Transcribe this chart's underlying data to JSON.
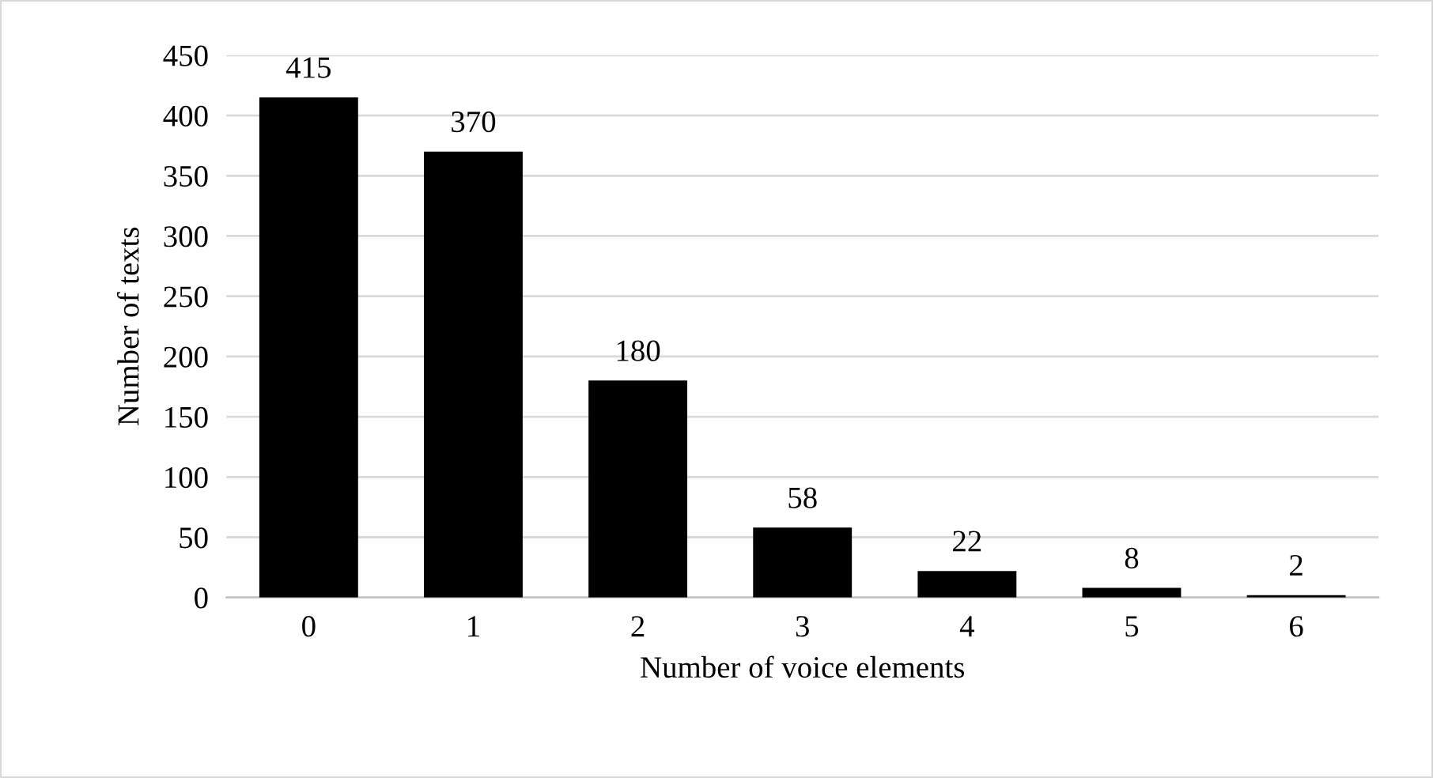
{
  "chart_data": {
    "type": "bar",
    "xlabel": "Number of voice elements",
    "ylabel": "Number of texts",
    "categories": [
      "0",
      "1",
      "2",
      "3",
      "4",
      "5",
      "6"
    ],
    "values": [
      415,
      370,
      180,
      58,
      22,
      8,
      2
    ],
    "color": "#000000",
    "ylim": [
      0,
      450
    ],
    "yticks": [
      0,
      50,
      100,
      150,
      200,
      250,
      300,
      350,
      400,
      450
    ],
    "grid": "y",
    "data_labels": true
  }
}
